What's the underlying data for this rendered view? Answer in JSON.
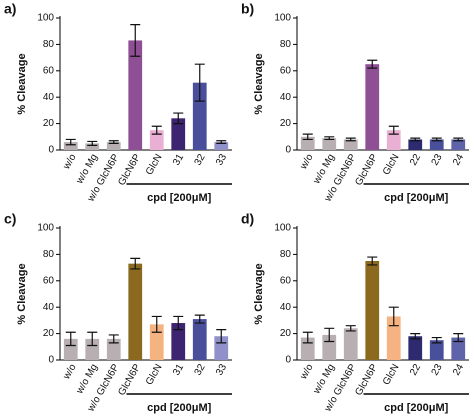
{
  "chart_data": [
    {
      "type": "bar",
      "panel_label": "a)",
      "y_label": "% Cleavage",
      "annotation": "cpd [200μM]",
      "categories": [
        "w/o",
        "w/o Mg",
        "w/o GlcN6P",
        "GlcN6P",
        "GlcN",
        "31",
        "32",
        "33"
      ],
      "values": [
        6,
        5,
        6,
        83,
        15,
        24,
        51,
        6
      ],
      "errors": [
        2,
        1.5,
        1,
        12,
        3,
        4,
        14,
        1
      ],
      "colors": [
        "#b7afb2",
        "#b7afb2",
        "#b7afb2",
        "#8f4f94",
        "#eab0d4",
        "#3d2470",
        "#4a4f9c",
        "#8f91c8"
      ],
      "ylim": [
        0,
        100
      ],
      "yticks": [
        0,
        20,
        40,
        60,
        80,
        100
      ]
    },
    {
      "type": "bar",
      "panel_label": "b)",
      "y_label": "% Cleavage",
      "annotation": "cpd [200μM]",
      "categories": [
        "w/o",
        "w/o Mg",
        "w/o GlcN6P",
        "GlcN6P",
        "GlcN",
        "22",
        "23",
        "24"
      ],
      "values": [
        10,
        9,
        8,
        65,
        15,
        8,
        8,
        8
      ],
      "errors": [
        2,
        1,
        1,
        3,
        3,
        1,
        1,
        1
      ],
      "colors": [
        "#b7afb2",
        "#b7afb2",
        "#b7afb2",
        "#8f4f94",
        "#eab0d4",
        "#2d2a70",
        "#4a4f9c",
        "#5f64aa"
      ],
      "ylim": [
        0,
        100
      ],
      "yticks": [
        0,
        20,
        40,
        60,
        80,
        100
      ]
    },
    {
      "type": "bar",
      "panel_label": "c)",
      "y_label": "% Cleavage",
      "annotation": "cpd [200μM]",
      "categories": [
        "w/o",
        "w/o Mg",
        "w/o GlcN6P",
        "GlcN6P",
        "GlcN",
        "31",
        "32",
        "33"
      ],
      "values": [
        16,
        16,
        16,
        73,
        27,
        28,
        31,
        18
      ],
      "errors": [
        5,
        5,
        3,
        4,
        6,
        5,
        3,
        5
      ],
      "colors": [
        "#b7afb2",
        "#b7afb2",
        "#b7afb2",
        "#8b6a20",
        "#f5b382",
        "#3d2470",
        "#4a4f9c",
        "#8f91c8"
      ],
      "ylim": [
        0,
        100
      ],
      "yticks": [
        0,
        20,
        40,
        60,
        80,
        100
      ]
    },
    {
      "type": "bar",
      "panel_label": "d)",
      "y_label": "% Cleavage",
      "annotation": "cpd [200μM]",
      "categories": [
        "w/o",
        "w/o Mg",
        "w/o GlcN6P",
        "GlcN6P",
        "GlcN",
        "22",
        "23",
        "24"
      ],
      "values": [
        17,
        19,
        24,
        75,
        33,
        18,
        15,
        17
      ],
      "errors": [
        4,
        5,
        2,
        3,
        7,
        2,
        2,
        3
      ],
      "colors": [
        "#b7afb2",
        "#b7afb2",
        "#b7afb2",
        "#8b6a20",
        "#f5b382",
        "#2d2a70",
        "#4a4f9c",
        "#5f64aa"
      ],
      "ylim": [
        0,
        100
      ],
      "yticks": [
        0,
        20,
        40,
        60,
        80,
        100
      ]
    }
  ]
}
